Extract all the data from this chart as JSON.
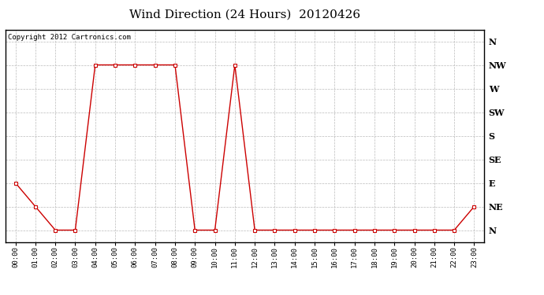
{
  "title": "Wind Direction (24 Hours)  20120426",
  "copyright": "Copyright 2012 Cartronics.com",
  "x_labels": [
    "00:00",
    "01:00",
    "02:00",
    "03:00",
    "04:00",
    "05:00",
    "06:00",
    "07:00",
    "08:00",
    "09:00",
    "10:00",
    "11:00",
    "12:00",
    "13:00",
    "14:00",
    "15:00",
    "16:00",
    "17:00",
    "18:00",
    "19:00",
    "20:00",
    "21:00",
    "22:00",
    "23:00"
  ],
  "x_values": [
    0,
    1,
    2,
    3,
    4,
    5,
    6,
    7,
    8,
    9,
    10,
    11,
    12,
    13,
    14,
    15,
    16,
    17,
    18,
    19,
    20,
    21,
    22,
    23
  ],
  "y_values": [
    2,
    1,
    0,
    0,
    7,
    7,
    7,
    7,
    7,
    0,
    0,
    7,
    0,
    0,
    0,
    0,
    0,
    0,
    0,
    0,
    0,
    0,
    0,
    1
  ],
  "y_ticks": [
    0,
    1,
    2,
    3,
    4,
    5,
    6,
    7,
    8
  ],
  "y_tick_labels": [
    "N",
    "NE",
    "E",
    "SE",
    "S",
    "SW",
    "W",
    "NW",
    "N"
  ],
  "line_color": "#cc0000",
  "marker_color": "#cc0000",
  "bg_color": "#ffffff",
  "grid_color": "#bbbbbb",
  "title_fontsize": 11,
  "copyright_fontsize": 6.5,
  "fig_width": 6.9,
  "fig_height": 3.75,
  "dpi": 100
}
